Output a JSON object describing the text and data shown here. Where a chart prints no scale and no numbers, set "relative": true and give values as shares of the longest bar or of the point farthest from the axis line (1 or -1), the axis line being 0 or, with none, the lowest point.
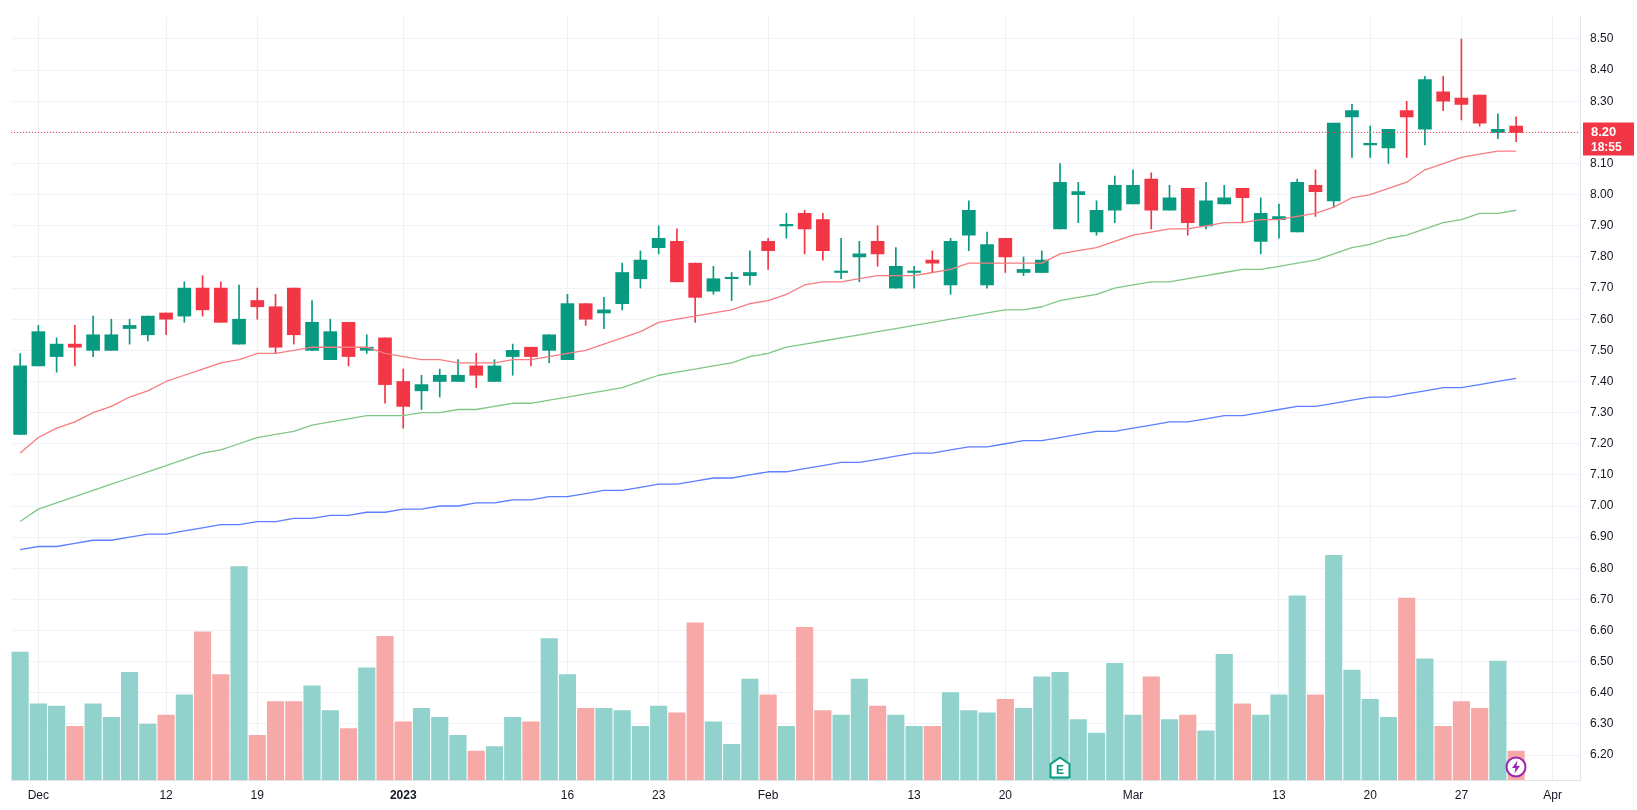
{
  "chart_data": [
    {
      "type": "candlestick",
      "categories": [
        null,
        "Dec",
        null,
        null,
        null,
        null,
        null,
        null,
        "12",
        null,
        null,
        null,
        null,
        "19",
        null,
        null,
        null,
        null,
        null,
        null,
        null,
        "2023",
        null,
        null,
        null,
        null,
        null,
        null,
        null,
        null,
        "16",
        null,
        null,
        null,
        null,
        "23",
        null,
        null,
        null,
        null,
        null,
        "Feb",
        null,
        null,
        null,
        null,
        null,
        null,
        null,
        "13",
        null,
        null,
        null,
        null,
        "20",
        null,
        null,
        null,
        null,
        null,
        null,
        "Mar",
        null,
        null,
        null,
        null,
        null,
        null,
        null,
        "13",
        null,
        null,
        null,
        null,
        "20",
        null,
        null,
        null,
        null,
        "27",
        null,
        null,
        null,
        null,
        "Apr",
        null
      ],
      "ohlc": [
        [
          7.23,
          7.49,
          7.23,
          7.45
        ],
        [
          7.45,
          7.58,
          7.45,
          7.56
        ],
        [
          7.48,
          7.54,
          7.43,
          7.52
        ],
        [
          7.52,
          7.58,
          7.45,
          7.51
        ],
        [
          7.5,
          7.61,
          7.48,
          7.55
        ],
        [
          7.5,
          7.6,
          7.5,
          7.55
        ],
        [
          7.57,
          7.6,
          7.52,
          7.58
        ],
        [
          7.55,
          7.61,
          7.53,
          7.61
        ],
        [
          7.62,
          7.62,
          7.55,
          7.6
        ],
        [
          7.61,
          7.72,
          7.59,
          7.7
        ],
        [
          7.7,
          7.74,
          7.61,
          7.63
        ],
        [
          7.7,
          7.72,
          7.59,
          7.59
        ],
        [
          7.52,
          7.71,
          7.52,
          7.6
        ],
        [
          7.66,
          7.7,
          7.6,
          7.64
        ],
        [
          7.64,
          7.68,
          7.49,
          7.51
        ],
        [
          7.7,
          7.7,
          7.52,
          7.55
        ],
        [
          7.5,
          7.66,
          7.5,
          7.59
        ],
        [
          7.47,
          7.6,
          7.47,
          7.56
        ],
        [
          7.59,
          7.59,
          7.45,
          7.48
        ],
        [
          7.5,
          7.55,
          7.49,
          7.51
        ],
        [
          7.54,
          7.54,
          7.33,
          7.39
        ],
        [
          7.4,
          7.44,
          7.25,
          7.32
        ],
        [
          7.37,
          7.42,
          7.31,
          7.39
        ],
        [
          7.4,
          7.44,
          7.35,
          7.42
        ],
        [
          7.4,
          7.47,
          7.4,
          7.42
        ],
        [
          7.45,
          7.49,
          7.38,
          7.42
        ],
        [
          7.4,
          7.47,
          7.4,
          7.45
        ],
        [
          7.48,
          7.52,
          7.42,
          7.5
        ],
        [
          7.51,
          7.51,
          7.45,
          7.48
        ],
        [
          7.5,
          7.55,
          7.46,
          7.55
        ],
        [
          7.47,
          7.68,
          7.47,
          7.65
        ],
        [
          7.65,
          7.65,
          7.58,
          7.6
        ],
        [
          7.62,
          7.67,
          7.57,
          7.63
        ],
        [
          7.65,
          7.78,
          7.63,
          7.75
        ],
        [
          7.73,
          7.82,
          7.7,
          7.79
        ],
        [
          7.83,
          7.9,
          7.81,
          7.86
        ],
        [
          7.85,
          7.89,
          7.72,
          7.72
        ],
        [
          7.78,
          7.78,
          7.59,
          7.67
        ],
        [
          7.69,
          7.77,
          7.68,
          7.73
        ],
        [
          7.73,
          7.75,
          7.66,
          7.73
        ],
        [
          7.74,
          7.82,
          7.71,
          7.75
        ],
        [
          7.85,
          7.86,
          7.76,
          7.82
        ],
        [
          7.9,
          7.94,
          7.86,
          7.9
        ],
        [
          7.94,
          7.95,
          7.81,
          7.89
        ],
        [
          7.92,
          7.94,
          7.79,
          7.82
        ],
        [
          7.75,
          7.86,
          7.73,
          7.75
        ],
        [
          7.8,
          7.85,
          7.72,
          7.81
        ],
        [
          7.85,
          7.9,
          7.77,
          7.81
        ],
        [
          7.7,
          7.83,
          7.7,
          7.77
        ],
        [
          7.75,
          7.77,
          7.7,
          7.75
        ],
        [
          7.79,
          7.82,
          7.75,
          7.78
        ],
        [
          7.71,
          7.86,
          7.68,
          7.85
        ],
        [
          7.87,
          7.98,
          7.82,
          7.95
        ],
        [
          7.71,
          7.88,
          7.7,
          7.84
        ],
        [
          7.86,
          7.86,
          7.75,
          7.8
        ],
        [
          7.75,
          7.8,
          7.74,
          7.76
        ],
        [
          7.75,
          7.82,
          7.75,
          7.79
        ],
        [
          7.89,
          8.1,
          7.89,
          8.04
        ],
        [
          8.0,
          8.04,
          7.91,
          8.01
        ],
        [
          7.88,
          7.98,
          7.87,
          7.95
        ],
        [
          7.95,
          8.06,
          7.91,
          8.03
        ],
        [
          7.97,
          8.08,
          7.97,
          8.03
        ],
        [
          8.05,
          8.07,
          7.89,
          7.95
        ],
        [
          7.95,
          8.03,
          7.95,
          7.99
        ],
        [
          8.02,
          8.02,
          7.87,
          7.91
        ],
        [
          7.9,
          8.04,
          7.89,
          7.98
        ],
        [
          7.97,
          8.03,
          7.97,
          7.99
        ],
        [
          8.02,
          8.02,
          7.91,
          7.99
        ],
        [
          7.85,
          7.99,
          7.81,
          7.94
        ],
        [
          7.92,
          7.97,
          7.86,
          7.93
        ],
        [
          7.88,
          8.05,
          7.88,
          8.04
        ],
        [
          8.03,
          8.08,
          7.93,
          8.01
        ],
        [
          7.98,
          8.23,
          7.96,
          8.23
        ],
        [
          8.25,
          8.29,
          8.12,
          8.27
        ],
        [
          8.16,
          8.22,
          8.12,
          8.16
        ],
        [
          8.15,
          8.21,
          8.1,
          8.21
        ],
        [
          8.27,
          8.3,
          8.12,
          8.25
        ],
        [
          8.21,
          8.38,
          8.16,
          8.37
        ],
        [
          8.33,
          8.38,
          8.27,
          8.3
        ],
        [
          8.31,
          8.5,
          8.24,
          8.29
        ],
        [
          8.32,
          8.32,
          8.22,
          8.23
        ],
        [
          8.2,
          8.26,
          8.18,
          8.21
        ],
        [
          8.22,
          8.25,
          8.17,
          8.2
        ],
        null,
        null,
        null
      ],
      "colors": [
        "#089981",
        "#089981",
        "#089981",
        "#f23645",
        "#089981",
        "#089981",
        "#089981",
        "#089981",
        "#f23645",
        "#089981",
        "#f23645",
        "#f23645",
        "#089981",
        "#f23645",
        "#f23645",
        "#f23645",
        "#089981",
        "#089981",
        "#f23645",
        "#089981",
        "#f23645",
        "#f23645",
        "#089981",
        "#089981",
        "#089981",
        "#f23645",
        "#089981",
        "#089981",
        "#f23645",
        "#089981",
        "#089981",
        "#f23645",
        "#089981",
        "#089981",
        "#089981",
        "#089981",
        "#f23645",
        "#f23645",
        "#089981",
        "#089981",
        "#089981",
        "#f23645",
        "#089981",
        "#f23645",
        "#f23645",
        "#089981",
        "#089981",
        "#f23645",
        "#089981",
        "#089981",
        "#f23645",
        "#089981",
        "#089981",
        "#089981",
        "#f23645",
        "#089981",
        "#089981",
        "#089981",
        "#089981",
        "#089981",
        "#089981",
        "#089981",
        "#f23645",
        "#089981",
        "#f23645",
        "#089981",
        "#089981",
        "#f23645",
        "#089981",
        "#089981",
        "#089981",
        "#f23645",
        "#089981",
        "#089981",
        "#089981",
        "#089981",
        "#f23645",
        "#089981",
        "#f23645",
        "#f23645",
        "#f23645",
        "#089981",
        "#f23645",
        null,
        null,
        null
      ],
      "series": [
        {
          "type": "line",
          "color": "#f77c80",
          "values": [
            7.17,
            7.22,
            7.25,
            7.27,
            7.3,
            7.32,
            7.35,
            7.37,
            7.4,
            7.42,
            7.44,
            7.46,
            7.47,
            7.49,
            7.49,
            7.5,
            7.51,
            7.51,
            7.51,
            7.51,
            7.49,
            7.48,
            7.47,
            7.47,
            7.46,
            7.46,
            7.46,
            7.47,
            7.47,
            7.48,
            7.49,
            7.5,
            7.52,
            7.54,
            7.56,
            7.59,
            7.6,
            7.61,
            7.62,
            7.63,
            7.65,
            7.66,
            7.68,
            7.71,
            7.72,
            7.72,
            7.73,
            7.74,
            7.74,
            7.74,
            7.75,
            7.76,
            7.78,
            7.78,
            7.78,
            7.78,
            7.78,
            7.81,
            7.82,
            7.83,
            7.85,
            7.87,
            7.88,
            7.89,
            7.89,
            7.9,
            7.91,
            7.91,
            7.92,
            7.92,
            7.93,
            7.94,
            7.96,
            7.99,
            8.0,
            8.02,
            8.04,
            8.08,
            8.1,
            8.12,
            8.13,
            8.14,
            8.14,
            null,
            null,
            null
          ]
        },
        {
          "type": "line",
          "color": "#7fc785",
          "values": [
            6.95,
            6.99,
            7.01,
            7.03,
            7.05,
            7.07,
            7.09,
            7.11,
            7.13,
            7.15,
            7.17,
            7.18,
            7.2,
            7.22,
            7.23,
            7.24,
            7.26,
            7.27,
            7.28,
            7.29,
            7.29,
            7.29,
            7.3,
            7.3,
            7.31,
            7.31,
            7.32,
            7.33,
            7.33,
            7.34,
            7.35,
            7.36,
            7.37,
            7.38,
            7.4,
            7.42,
            7.43,
            7.44,
            7.45,
            7.46,
            7.48,
            7.49,
            7.51,
            7.52,
            7.53,
            7.54,
            7.55,
            7.56,
            7.57,
            7.58,
            7.59,
            7.6,
            7.61,
            7.62,
            7.63,
            7.63,
            7.64,
            7.66,
            7.67,
            7.68,
            7.7,
            7.71,
            7.72,
            7.72,
            7.73,
            7.74,
            7.75,
            7.76,
            7.76,
            7.77,
            7.78,
            7.79,
            7.81,
            7.83,
            7.84,
            7.86,
            7.87,
            7.89,
            7.91,
            7.92,
            7.94,
            7.94,
            7.95,
            null,
            null,
            null
          ]
        },
        {
          "type": "line",
          "color": "#5b7fff",
          "values": [
            6.86,
            6.87,
            6.87,
            6.88,
            6.89,
            6.89,
            6.9,
            6.91,
            6.91,
            6.92,
            6.93,
            6.94,
            6.94,
            6.95,
            6.95,
            6.96,
            6.96,
            6.97,
            6.97,
            6.98,
            6.98,
            6.99,
            6.99,
            7.0,
            7.0,
            7.01,
            7.01,
            7.02,
            7.02,
            7.03,
            7.03,
            7.04,
            7.05,
            7.05,
            7.06,
            7.07,
            7.07,
            7.08,
            7.09,
            7.09,
            7.1,
            7.11,
            7.11,
            7.12,
            7.13,
            7.14,
            7.14,
            7.15,
            7.16,
            7.17,
            7.17,
            7.18,
            7.19,
            7.19,
            7.2,
            7.21,
            7.21,
            7.22,
            7.23,
            7.24,
            7.24,
            7.25,
            7.26,
            7.27,
            7.27,
            7.28,
            7.29,
            7.29,
            7.3,
            7.31,
            7.32,
            7.32,
            7.33,
            7.34,
            7.35,
            7.35,
            7.36,
            7.37,
            7.38,
            7.38,
            7.39,
            7.4,
            7.41,
            null,
            null,
            null
          ]
        }
      ],
      "ylim": [
        6.12,
        8.57
      ],
      "yticks": [
        {
          "value": 6.2,
          "label": "6.20"
        },
        {
          "value": 6.3,
          "label": "6.30"
        },
        {
          "value": 6.4,
          "label": "6.40"
        },
        {
          "value": 6.5,
          "label": "6.50"
        },
        {
          "value": 6.6,
          "label": "6.60"
        },
        {
          "value": 6.7,
          "label": "6.70"
        },
        {
          "value": 6.8,
          "label": "6.80"
        },
        {
          "value": 6.9,
          "label": "6.90"
        },
        {
          "value": 7.0,
          "label": "7.00"
        },
        {
          "value": 7.1,
          "label": "7.10"
        },
        {
          "value": 7.2,
          "label": "7.20"
        },
        {
          "value": 7.3,
          "label": "7.30"
        },
        {
          "value": 7.4,
          "label": "7.40"
        },
        {
          "value": 7.5,
          "label": "7.50"
        },
        {
          "value": 7.6,
          "label": "7.60"
        },
        {
          "value": 7.7,
          "label": "7.70"
        },
        {
          "value": 7.8,
          "label": "7.80"
        },
        {
          "value": 7.9,
          "label": "7.90"
        },
        {
          "value": 8.0,
          "label": "8.00"
        },
        {
          "value": 8.1,
          "label": "8.10"
        },
        {
          "value": 8.2,
          "label": null
        },
        {
          "value": 8.3,
          "label": "8.30"
        },
        {
          "value": 8.4,
          "label": "8.40"
        },
        {
          "value": 8.5,
          "label": "8.50"
        }
      ],
      "grid": true,
      "ref_lines": [
        {
          "axis": "y",
          "value": 8.2,
          "label": "8.20",
          "color": "#f23645",
          "line_style": "dotted"
        }
      ],
      "annotations": [
        "18:55",
        "E"
      ]
    },
    {
      "type": "bar",
      "relative": true,
      "categories": [
        null,
        null,
        null,
        null,
        null,
        null,
        null,
        null,
        null,
        null,
        null,
        null,
        null,
        null,
        null,
        null,
        null,
        null,
        null,
        null,
        null,
        null,
        null,
        null,
        null,
        null,
        null,
        null,
        null,
        null,
        null,
        null,
        null,
        null,
        null,
        null,
        null,
        null,
        null,
        null,
        null,
        null,
        null,
        null,
        null,
        null,
        null,
        null,
        null,
        null,
        null,
        null,
        null,
        null,
        null,
        null,
        null,
        null,
        null,
        null,
        null,
        null,
        null,
        null,
        null,
        null,
        null,
        null,
        null,
        null,
        null,
        null,
        null,
        null,
        null,
        null,
        null,
        null,
        null,
        null,
        null,
        null,
        null,
        null,
        null,
        null
      ],
      "values": [
        0.57,
        0.34,
        0.33,
        0.24,
        0.34,
        0.28,
        0.48,
        0.25,
        0.29,
        0.38,
        0.66,
        0.47,
        0.95,
        0.2,
        0.35,
        0.35,
        0.42,
        0.31,
        0.23,
        0.5,
        0.64,
        0.26,
        0.32,
        0.28,
        0.2,
        0.13,
        0.15,
        0.28,
        0.26,
        0.63,
        0.47,
        0.32,
        0.32,
        0.31,
        0.24,
        0.33,
        0.3,
        0.7,
        0.26,
        0.16,
        0.45,
        0.38,
        0.24,
        0.68,
        0.31,
        0.29,
        0.45,
        0.33,
        0.29,
        0.24,
        0.24,
        0.39,
        0.31,
        0.3,
        0.36,
        0.32,
        0.46,
        0.48,
        0.27,
        0.21,
        0.52,
        0.29,
        0.46,
        0.27,
        0.29,
        0.22,
        0.56,
        0.34,
        0.29,
        0.38,
        0.82,
        0.38,
        1,
        0.49,
        0.36,
        0.28,
        0.81,
        0.54,
        0.24,
        0.35,
        0.32,
        0.53,
        0.13,
        null,
        null,
        null
      ],
      "colors": [
        "#92d2cc",
        "#92d2cc",
        "#92d2cc",
        "#f7a9a7",
        "#92d2cc",
        "#92d2cc",
        "#92d2cc",
        "#92d2cc",
        "#f7a9a7",
        "#92d2cc",
        "#f7a9a7",
        "#f7a9a7",
        "#92d2cc",
        "#f7a9a7",
        "#f7a9a7",
        "#f7a9a7",
        "#92d2cc",
        "#92d2cc",
        "#f7a9a7",
        "#92d2cc",
        "#f7a9a7",
        "#f7a9a7",
        "#92d2cc",
        "#92d2cc",
        "#92d2cc",
        "#f7a9a7",
        "#92d2cc",
        "#92d2cc",
        "#f7a9a7",
        "#92d2cc",
        "#92d2cc",
        "#f7a9a7",
        "#92d2cc",
        "#92d2cc",
        "#92d2cc",
        "#92d2cc",
        "#f7a9a7",
        "#f7a9a7",
        "#92d2cc",
        "#92d2cc",
        "#92d2cc",
        "#f7a9a7",
        "#92d2cc",
        "#f7a9a7",
        "#f7a9a7",
        "#92d2cc",
        "#92d2cc",
        "#f7a9a7",
        "#92d2cc",
        "#92d2cc",
        "#f7a9a7",
        "#92d2cc",
        "#92d2cc",
        "#92d2cc",
        "#f7a9a7",
        "#92d2cc",
        "#92d2cc",
        "#92d2cc",
        "#92d2cc",
        "#92d2cc",
        "#92d2cc",
        "#92d2cc",
        "#f7a9a7",
        "#92d2cc",
        "#f7a9a7",
        "#92d2cc",
        "#92d2cc",
        "#f7a9a7",
        "#92d2cc",
        "#92d2cc",
        "#92d2cc",
        "#f7a9a7",
        "#92d2cc",
        "#92d2cc",
        "#92d2cc",
        "#92d2cc",
        "#f7a9a7",
        "#92d2cc",
        "#f7a9a7",
        "#f7a9a7",
        "#f7a9a7",
        "#92d2cc",
        "#f7a9a7",
        null,
        null,
        null
      ]
    }
  ]
}
